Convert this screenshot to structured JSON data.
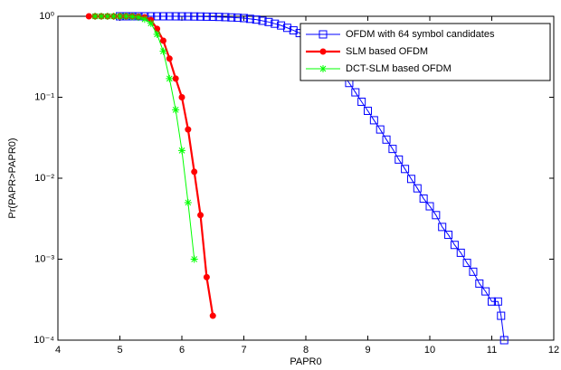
{
  "chart_data": {
    "type": "line",
    "xlabel": "PAPR0",
    "ylabel": "Pr(PAPR>PAPR0)",
    "xlim": [
      4,
      12
    ],
    "xticks": [
      4,
      5,
      6,
      7,
      8,
      9,
      10,
      11,
      12
    ],
    "yscale": "log",
    "ylim": [
      0.0001,
      1
    ],
    "yticks": [
      {
        "value": 0.0001,
        "label": "10⁻⁴"
      },
      {
        "value": 0.001,
        "label": "10⁻³"
      },
      {
        "value": 0.01,
        "label": "10⁻²"
      },
      {
        "value": 0.1,
        "label": "10⁻¹"
      },
      {
        "value": 1,
        "label": "10⁰"
      }
    ],
    "grid": false,
    "legend": "upper right",
    "series": [
      {
        "name": "OFDM with 64 symbol candidates",
        "color": "#0000ff",
        "marker": "square",
        "x": [
          5.0,
          5.1,
          5.2,
          5.3,
          5.4,
          5.5,
          5.6,
          5.7,
          5.8,
          5.9,
          6.0,
          6.1,
          6.2,
          6.3,
          6.4,
          6.5,
          6.6,
          6.7,
          6.8,
          6.9,
          7.0,
          7.1,
          7.2,
          7.3,
          7.4,
          7.5,
          7.6,
          7.7,
          7.8,
          7.9,
          8.0,
          8.1,
          8.2,
          8.3,
          8.4,
          8.5,
          8.6,
          8.7,
          8.8,
          8.9,
          9.0,
          9.1,
          9.2,
          9.3,
          9.4,
          9.5,
          9.6,
          9.7,
          9.8,
          9.9,
          10.0,
          10.1,
          10.2,
          10.3,
          10.4,
          10.5,
          10.6,
          10.7,
          10.8,
          10.9,
          11.0,
          11.1,
          11.15,
          11.2
        ],
        "values": [
          1,
          1,
          1,
          1,
          1,
          1,
          1,
          1,
          1,
          0.999,
          0.998,
          0.997,
          0.995,
          0.993,
          0.99,
          0.987,
          0.982,
          0.976,
          0.968,
          0.96,
          0.95,
          0.93,
          0.91,
          0.88,
          0.85,
          0.81,
          0.77,
          0.72,
          0.67,
          0.62,
          0.56,
          0.49,
          0.43,
          0.36,
          0.3,
          0.24,
          0.19,
          0.15,
          0.115,
          0.088,
          0.068,
          0.052,
          0.04,
          0.03,
          0.023,
          0.017,
          0.013,
          0.0098,
          0.0075,
          0.0056,
          0.0045,
          0.0035,
          0.0025,
          0.002,
          0.0015,
          0.0012,
          0.0009,
          0.0007,
          0.0005,
          0.0004,
          0.0003,
          0.0003,
          0.0002,
          0.0001
        ]
      },
      {
        "name": "SLM based OFDM",
        "color": "#ff0000",
        "marker": "circle",
        "x": [
          4.5,
          4.6,
          4.7,
          4.8,
          4.9,
          5.0,
          5.1,
          5.2,
          5.3,
          5.4,
          5.5,
          5.6,
          5.7,
          5.8,
          5.9,
          6.0,
          6.1,
          6.2,
          6.3,
          6.4,
          6.5
        ],
        "values": [
          1,
          1,
          1,
          1,
          1,
          1,
          1,
          1,
          0.99,
          0.97,
          0.9,
          0.7,
          0.5,
          0.3,
          0.17,
          0.1,
          0.04,
          0.012,
          0.0035,
          0.0006,
          0.0002
        ]
      },
      {
        "name": "DCT-SLM based OFDM",
        "color": "#00ff00",
        "marker": "star",
        "x": [
          4.6,
          4.7,
          4.8,
          4.9,
          5.0,
          5.1,
          5.2,
          5.3,
          5.4,
          5.5,
          5.6,
          5.7,
          5.8,
          5.9,
          6.0,
          6.1,
          6.2
        ],
        "values": [
          1,
          1,
          1,
          1,
          1,
          1,
          0.99,
          0.97,
          0.92,
          0.82,
          0.6,
          0.37,
          0.17,
          0.07,
          0.022,
          0.005,
          0.001
        ]
      }
    ]
  }
}
